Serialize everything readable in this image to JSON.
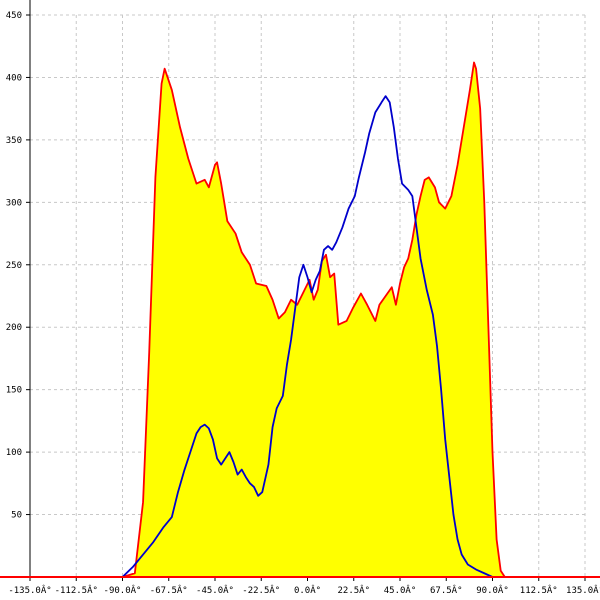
{
  "chart_data": {
    "type": "area",
    "title": "",
    "xlabel": "",
    "ylabel": "",
    "xlim": [
      -135,
      135
    ],
    "ylim": [
      0,
      450
    ],
    "grid": true,
    "x_ticks": [
      -135,
      -112.5,
      -90,
      -67.5,
      -45,
      -22.5,
      0,
      22.5,
      45,
      67.5,
      90,
      112.5,
      135
    ],
    "x_tick_labels": [
      "-135.0Â°",
      "-112.5Â°",
      "-90.0Â°",
      "-67.5Â°",
      "-45.0Â°",
      "-22.5Â°",
      "0.0Â°",
      "22.5Â°",
      "45.0Â°",
      "67.5Â°",
      "90.0Â°",
      "112.5Â°",
      "135.0Â°"
    ],
    "y_ticks": [
      50,
      100,
      150,
      200,
      250,
      300,
      350,
      400,
      450
    ],
    "y_tick_labels": [
      "50",
      "100",
      "150",
      "200",
      "250",
      "300",
      "350",
      "400",
      "450"
    ],
    "series": [
      {
        "style": "filled-area",
        "fill_color": "#ffff00",
        "line_color": "#ff0000",
        "points": [
          [
            -135,
            0
          ],
          [
            -90,
            0
          ],
          [
            -84,
            3
          ],
          [
            -80,
            60
          ],
          [
            -77,
            180
          ],
          [
            -74,
            320
          ],
          [
            -71,
            395
          ],
          [
            -69.5,
            407
          ],
          [
            -66,
            390
          ],
          [
            -62,
            360
          ],
          [
            -58,
            335
          ],
          [
            -54,
            315
          ],
          [
            -50,
            318
          ],
          [
            -48,
            312
          ],
          [
            -45,
            330
          ],
          [
            -44,
            332
          ],
          [
            -42,
            315
          ],
          [
            -39,
            285
          ],
          [
            -35,
            275
          ],
          [
            -32,
            260
          ],
          [
            -28,
            250
          ],
          [
            -25,
            235
          ],
          [
            -20,
            233
          ],
          [
            -17,
            222
          ],
          [
            -14,
            207
          ],
          [
            -11,
            212
          ],
          [
            -8,
            222
          ],
          [
            -5,
            218
          ],
          [
            -2,
            228
          ],
          [
            1,
            238
          ],
          [
            3,
            222
          ],
          [
            5,
            230
          ],
          [
            7,
            253
          ],
          [
            9,
            258
          ],
          [
            11,
            240
          ],
          [
            13,
            243
          ],
          [
            15,
            202
          ],
          [
            19,
            205
          ],
          [
            22,
            215
          ],
          [
            26,
            227
          ],
          [
            29,
            218
          ],
          [
            33,
            205
          ],
          [
            35,
            218
          ],
          [
            38,
            225
          ],
          [
            41,
            232
          ],
          [
            43,
            218
          ],
          [
            45,
            235
          ],
          [
            47,
            248
          ],
          [
            49,
            255
          ],
          [
            51,
            270
          ],
          [
            53,
            290
          ],
          [
            55,
            305
          ],
          [
            57,
            318
          ],
          [
            59,
            320
          ],
          [
            62,
            312
          ],
          [
            64,
            300
          ],
          [
            67,
            295
          ],
          [
            70,
            305
          ],
          [
            73,
            330
          ],
          [
            76,
            360
          ],
          [
            79,
            390
          ],
          [
            81,
            412
          ],
          [
            82,
            407
          ],
          [
            84,
            375
          ],
          [
            86,
            300
          ],
          [
            88,
            200
          ],
          [
            90,
            100
          ],
          [
            92,
            30
          ],
          [
            94,
            5
          ],
          [
            96,
            0
          ],
          [
            135,
            0
          ]
        ]
      },
      {
        "style": "line",
        "line_color": "#0000cc",
        "points": [
          [
            -90,
            0
          ],
          [
            -85,
            8
          ],
          [
            -80,
            18
          ],
          [
            -75,
            28
          ],
          [
            -70,
            40
          ],
          [
            -66,
            48
          ],
          [
            -63,
            68
          ],
          [
            -60,
            85
          ],
          [
            -57,
            100
          ],
          [
            -54,
            115
          ],
          [
            -52,
            120
          ],
          [
            -50,
            122
          ],
          [
            -48,
            119
          ],
          [
            -46,
            110
          ],
          [
            -44,
            95
          ],
          [
            -42,
            90
          ],
          [
            -40,
            95
          ],
          [
            -38,
            100
          ],
          [
            -36,
            92
          ],
          [
            -34,
            82
          ],
          [
            -32,
            86
          ],
          [
            -30,
            80
          ],
          [
            -28,
            75
          ],
          [
            -26,
            72
          ],
          [
            -24,
            65
          ],
          [
            -22,
            68
          ],
          [
            -19,
            90
          ],
          [
            -17,
            120
          ],
          [
            -15,
            135
          ],
          [
            -12,
            145
          ],
          [
            -10,
            170
          ],
          [
            -8,
            190
          ],
          [
            -6,
            215
          ],
          [
            -4,
            240
          ],
          [
            -2,
            250
          ],
          [
            0,
            240
          ],
          [
            2,
            228
          ],
          [
            4,
            238
          ],
          [
            6,
            245
          ],
          [
            8,
            262
          ],
          [
            10,
            265
          ],
          [
            12,
            262
          ],
          [
            14,
            268
          ],
          [
            17,
            280
          ],
          [
            20,
            295
          ],
          [
            23,
            305
          ],
          [
            25,
            320
          ],
          [
            28,
            340
          ],
          [
            30,
            355
          ],
          [
            33,
            372
          ],
          [
            36,
            380
          ],
          [
            38,
            385
          ],
          [
            40,
            380
          ],
          [
            42,
            360
          ],
          [
            44,
            335
          ],
          [
            46,
            315
          ],
          [
            49,
            310
          ],
          [
            51,
            305
          ],
          [
            53,
            280
          ],
          [
            55,
            255
          ],
          [
            58,
            230
          ],
          [
            61,
            210
          ],
          [
            63,
            185
          ],
          [
            65,
            150
          ],
          [
            67,
            110
          ],
          [
            69,
            80
          ],
          [
            71,
            50
          ],
          [
            73,
            30
          ],
          [
            75,
            18
          ],
          [
            78,
            10
          ],
          [
            82,
            6
          ],
          [
            86,
            3
          ],
          [
            90,
            0
          ]
        ]
      }
    ]
  }
}
